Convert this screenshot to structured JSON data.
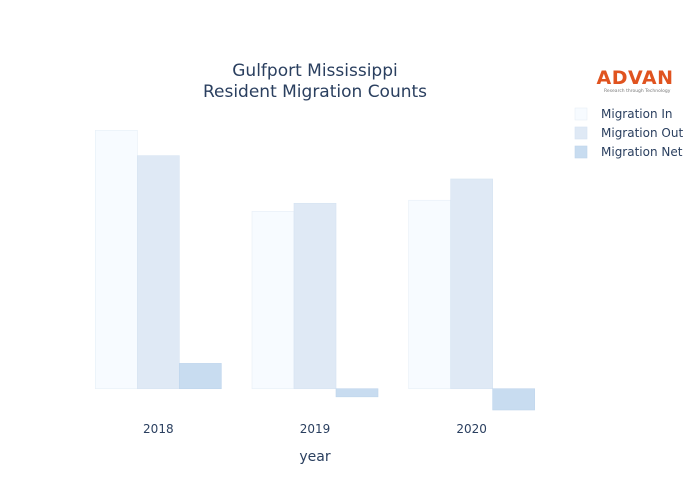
{
  "chart_data": {
    "type": "bar",
    "title_lines": [
      "Gulfport Mississippi",
      "Resident Migration Counts"
    ],
    "categories": [
      "2018",
      "2019",
      "2020"
    ],
    "xlabel": "year",
    "ylabel": "",
    "ylim": [
      -2100,
      28000
    ],
    "grid": false,
    "legend_position": "top-right",
    "series": [
      {
        "name": "Migration In",
        "values": [
          25500,
          17500,
          18600
        ],
        "color": "#f7fbff",
        "stroke": "#e6eef7"
      },
      {
        "name": "Migration Out",
        "values": [
          23000,
          18300,
          20700
        ],
        "color": "#dfe9f5",
        "stroke": "#d6e3f2"
      },
      {
        "name": "Migration Net",
        "values": [
          2500,
          -800,
          -2100
        ],
        "color": "#c8dcf0",
        "stroke": "#bed5ec"
      }
    ]
  },
  "logo": {
    "text": "ADVAN",
    "tagline": "Research through Technology"
  }
}
